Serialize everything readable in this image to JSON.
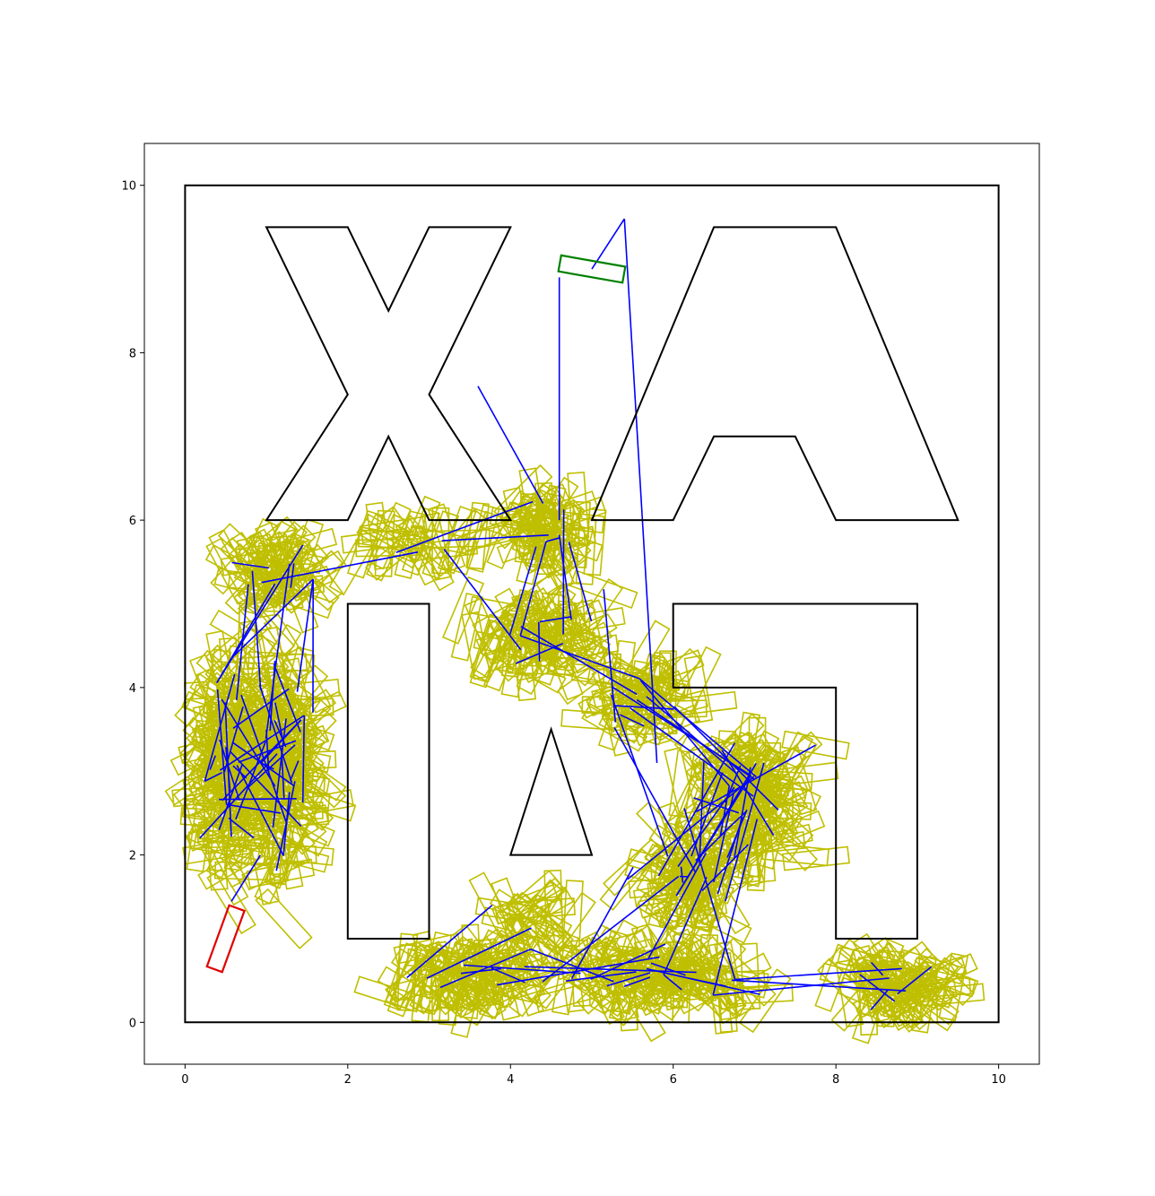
{
  "chart_data": {
    "type": "scatter",
    "title": "",
    "xlabel": "",
    "ylabel": "",
    "xlim": [
      -0.5,
      10.5
    ],
    "ylim": [
      -0.5,
      10.5
    ],
    "xticks": [
      0,
      2,
      4,
      6,
      8,
      10
    ],
    "yticks": [
      0,
      2,
      4,
      6,
      8,
      10
    ],
    "grid": false,
    "colors": {
      "obstacles": "#000000",
      "tree_edges": "#0000ff",
      "sampled_states": "#bfbf00",
      "start": "#ff0000",
      "goal": "#008000"
    },
    "workspace_boundary": [
      [
        0,
        0
      ],
      [
        10,
        0
      ],
      [
        10,
        10
      ],
      [
        0,
        10
      ]
    ],
    "obstacles": [
      {
        "name": "X",
        "polygon": [
          [
            1,
            9.5
          ],
          [
            2,
            9.5
          ],
          [
            2.5,
            8.5
          ],
          [
            3,
            9.5
          ],
          [
            4,
            9.5
          ],
          [
            3,
            7.5
          ],
          [
            4,
            6
          ],
          [
            3,
            6
          ],
          [
            2.5,
            7
          ],
          [
            2,
            6
          ],
          [
            1,
            6
          ],
          [
            2,
            7.5
          ]
        ]
      },
      {
        "name": "A",
        "polygon": [
          [
            5,
            6
          ],
          [
            6,
            6
          ],
          [
            6.5,
            7
          ],
          [
            7.5,
            7
          ],
          [
            8,
            6
          ],
          [
            9.5,
            6
          ],
          [
            8,
            9.5
          ],
          [
            6.5,
            9.5
          ]
        ]
      },
      {
        "name": "I",
        "polygon": [
          [
            2,
            1
          ],
          [
            3,
            1
          ],
          [
            3,
            5
          ],
          [
            2,
            5
          ]
        ]
      },
      {
        "name": "triangle",
        "polygon": [
          [
            4,
            2
          ],
          [
            5,
            2
          ],
          [
            4.5,
            3.5
          ]
        ]
      },
      {
        "name": "step-block",
        "polygon": [
          [
            6,
            4
          ],
          [
            8,
            4
          ],
          [
            8,
            1
          ],
          [
            9,
            1
          ],
          [
            9,
            5
          ],
          [
            6,
            5
          ]
        ]
      }
    ],
    "start": {
      "x": 0.5,
      "y": 1.0,
      "theta_deg": 70,
      "length": 0.8,
      "width": 0.2
    },
    "goal": {
      "x": 5.0,
      "y": 9.0,
      "theta_deg": -10,
      "length": 0.8,
      "width": 0.2
    },
    "explored_samples": 1100,
    "tree_edges": 420
  }
}
